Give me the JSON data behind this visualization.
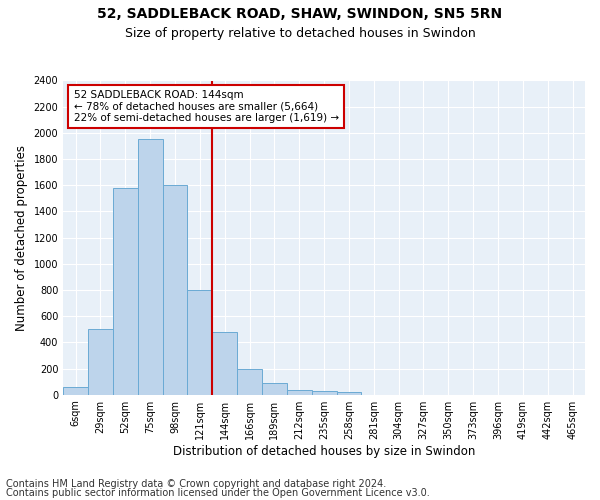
{
  "title1": "52, SADDLEBACK ROAD, SHAW, SWINDON, SN5 5RN",
  "title2": "Size of property relative to detached houses in Swindon",
  "xlabel": "Distribution of detached houses by size in Swindon",
  "ylabel": "Number of detached properties",
  "categories": [
    "6sqm",
    "29sqm",
    "52sqm",
    "75sqm",
    "98sqm",
    "121sqm",
    "144sqm",
    "166sqm",
    "189sqm",
    "212sqm",
    "235sqm",
    "258sqm",
    "281sqm",
    "304sqm",
    "327sqm",
    "350sqm",
    "373sqm",
    "396sqm",
    "419sqm",
    "442sqm",
    "465sqm"
  ],
  "values": [
    60,
    500,
    1580,
    1950,
    1600,
    800,
    480,
    200,
    90,
    35,
    25,
    20,
    0,
    0,
    0,
    0,
    0,
    0,
    0,
    0,
    0
  ],
  "bar_color": "#bdd4eb",
  "bar_edge_color": "#6aaad4",
  "vline_color": "#cc0000",
  "annotation_text": "52 SADDLEBACK ROAD: 144sqm\n← 78% of detached houses are smaller (5,664)\n22% of semi-detached houses are larger (1,619) →",
  "annotation_box_color": "#cc0000",
  "ylim": [
    0,
    2400
  ],
  "yticks": [
    0,
    200,
    400,
    600,
    800,
    1000,
    1200,
    1400,
    1600,
    1800,
    2000,
    2200,
    2400
  ],
  "footer1": "Contains HM Land Registry data © Crown copyright and database right 2024.",
  "footer2": "Contains public sector information licensed under the Open Government Licence v3.0.",
  "plot_bg_color": "#e8f0f8",
  "title_fontsize": 10,
  "subtitle_fontsize": 9,
  "axis_label_fontsize": 8.5,
  "tick_fontsize": 7,
  "footer_fontsize": 7,
  "annot_fontsize": 7.5
}
